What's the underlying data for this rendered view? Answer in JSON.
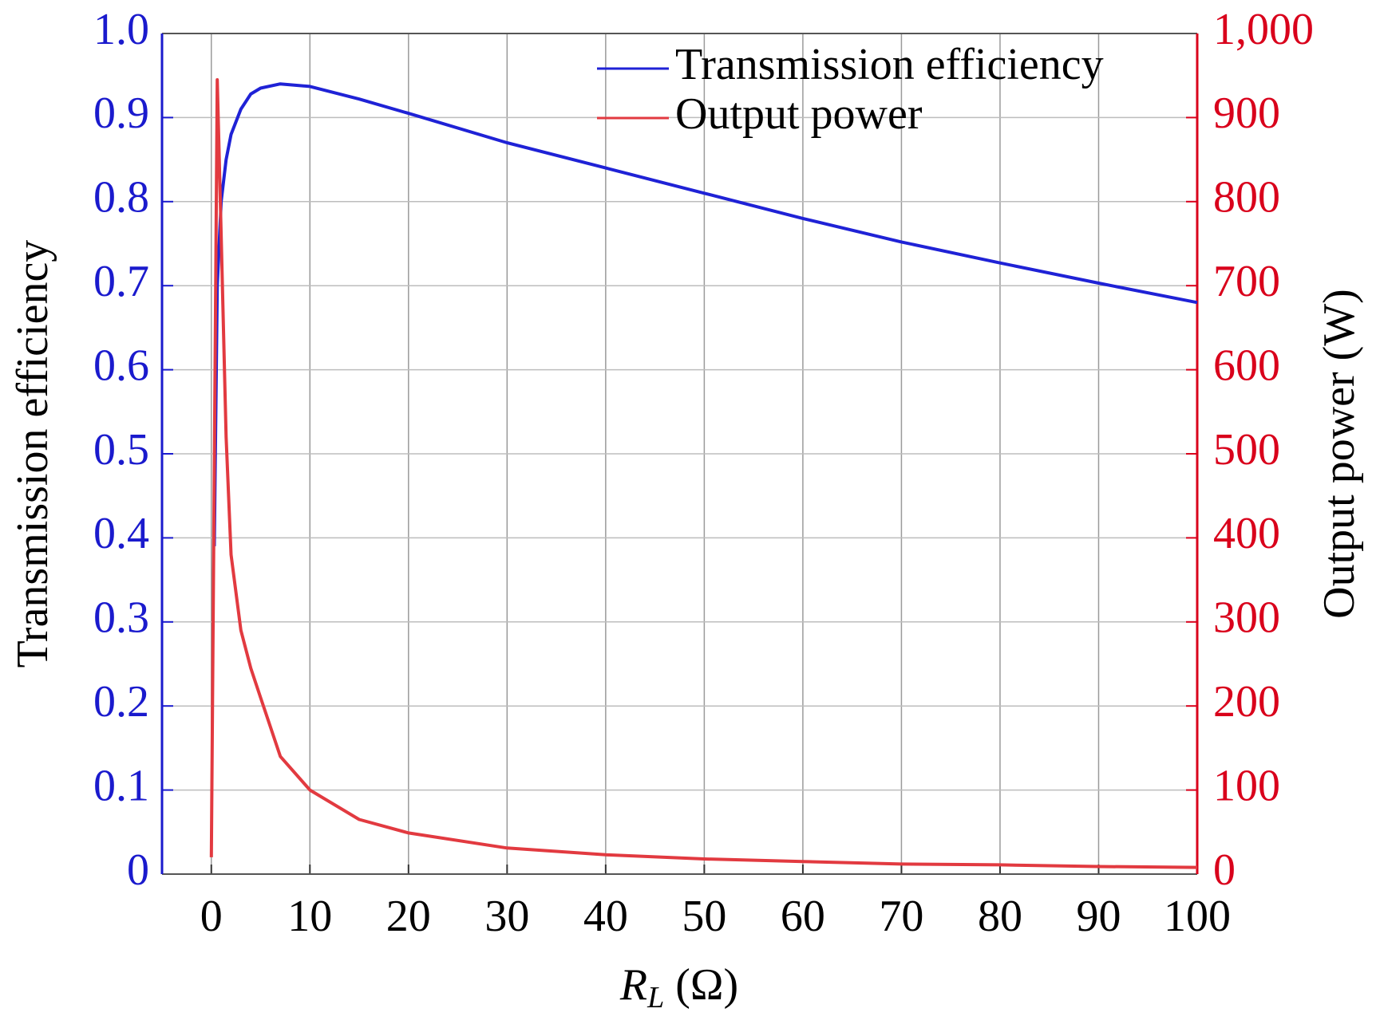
{
  "chart_data": {
    "type": "line",
    "x_label": [
      "R",
      "L",
      "(Ω)"
    ],
    "y_label": "Transmission efficiency",
    "y2_label": "Output power (W)",
    "xlim": [
      -5,
      100
    ],
    "xticks": [
      0,
      10,
      20,
      30,
      40,
      50,
      60,
      70,
      80,
      90,
      100
    ],
    "ylim": [
      0,
      1
    ],
    "yticks": [
      0,
      0.1,
      0.2,
      0.3,
      0.4,
      0.5,
      0.6,
      0.7,
      0.8,
      0.9,
      {
        "value": 1,
        "label": "1.0"
      }
    ],
    "y2lim": [
      0,
      1000
    ],
    "y2ticks": [
      0,
      100,
      200,
      300,
      400,
      500,
      600,
      700,
      800,
      900,
      {
        "value": 1000,
        "label": "1,000"
      }
    ],
    "y_color": "#1a1acd",
    "y2_color": "#d9001b",
    "grid": true,
    "legend": "upper right",
    "series": [
      {
        "name": "Transmission efficiency",
        "color": "#1f22d6",
        "axis": "y",
        "x": [
          0.3,
          0.6,
          1,
          1.5,
          2,
          3,
          4,
          5,
          7,
          10,
          15,
          20,
          30,
          40,
          50,
          60,
          70,
          80,
          90,
          100
        ],
        "values": [
          0.39,
          0.7,
          0.8,
          0.85,
          0.88,
          0.91,
          0.928,
          0.935,
          0.94,
          0.937,
          0.922,
          0.905,
          0.87,
          0.84,
          0.81,
          0.78,
          0.752,
          0.727,
          0.703,
          0.68
        ]
      },
      {
        "name": "Output power",
        "color": "#e23a40",
        "axis": "y2",
        "x": [
          0,
          0.6,
          1,
          1.5,
          2,
          3,
          4,
          5,
          7,
          10,
          15,
          20,
          30,
          40,
          50,
          60,
          70,
          80,
          90,
          100
        ],
        "values": [
          20,
          945,
          760,
          520,
          380,
          290,
          245,
          210,
          140,
          100,
          65,
          49,
          31,
          23,
          18,
          15,
          12,
          11,
          9,
          8
        ]
      }
    ]
  }
}
